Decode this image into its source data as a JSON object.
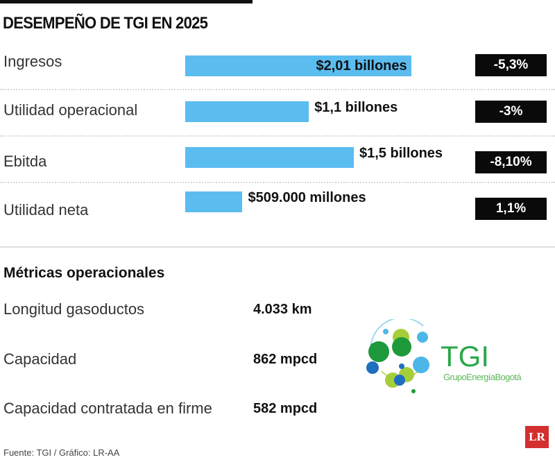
{
  "title": "DESEMPEÑO DE TGI EN 2025",
  "chart_data": {
    "type": "bar",
    "orientation": "horizontal",
    "categories": [
      "Ingresos",
      "Utilidad operacional",
      "Ebitda",
      "Utilidad neta"
    ],
    "values": [
      2.01,
      1.1,
      1.5,
      0.509
    ],
    "unit": "billones de pesos",
    "data_labels": [
      "$2,01 billones",
      "$1,1 billones",
      "$1,5 billones",
      "$509.000 millones"
    ],
    "changes": [
      "-5,3%",
      "-3%",
      "-8,10%",
      "1,1%"
    ],
    "bar_color": "#5bbcf0",
    "badge_color": "#0a0a0a"
  },
  "metrics": {
    "title": "Métricas operacionales",
    "items": [
      {
        "label": "Longitud gasoductos",
        "value": "4.033 km"
      },
      {
        "label": "Capacidad",
        "value": "862 mpcd"
      },
      {
        "label": "Capacidad contratada en firme",
        "value": "582 mpcd"
      }
    ]
  },
  "logo": {
    "name": "TGI",
    "tagline": "GrupoEnergíaBogotá"
  },
  "brand": "LR",
  "source": "Fuente: TGI / Gráfico: LR-AA"
}
